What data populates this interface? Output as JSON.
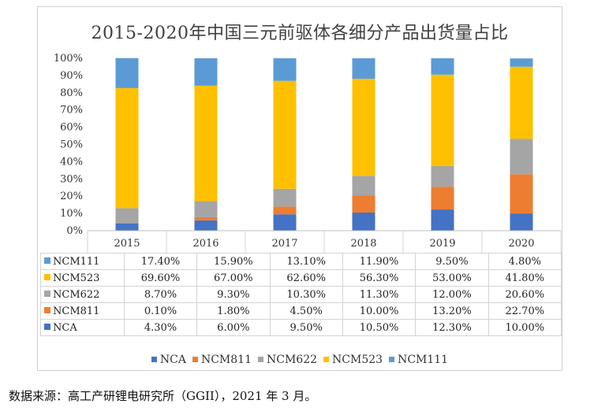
{
  "chart_data": {
    "type": "bar",
    "stacked": true,
    "title": "2015-2020年中国三元前驱体各细分产品出货量占比",
    "categories": [
      "2015",
      "2016",
      "2017",
      "2018",
      "2019",
      "2020"
    ],
    "y_tick_labels": [
      "0%",
      "10%",
      "20%",
      "30%",
      "40%",
      "50%",
      "60%",
      "70%",
      "80%",
      "90%",
      "100%"
    ],
    "ylim": [
      0,
      100
    ],
    "series": [
      {
        "name": "NCA",
        "color": "#4472C4",
        "values": [
          4.3,
          6.0,
          9.5,
          10.5,
          12.3,
          10.0
        ],
        "labels": [
          "4.30%",
          "6.00%",
          "9.50%",
          "10.50%",
          "12.30%",
          "10.00%"
        ]
      },
      {
        "name": "NCM811",
        "color": "#ED7D31",
        "values": [
          0.1,
          1.8,
          4.5,
          10.0,
          13.2,
          22.7
        ],
        "labels": [
          "0.10%",
          "1.80%",
          "4.50%",
          "10.00%",
          "13.20%",
          "22.70%"
        ]
      },
      {
        "name": "NCM622",
        "color": "#A5A5A5",
        "values": [
          8.7,
          9.3,
          10.3,
          11.3,
          12.0,
          20.6
        ],
        "labels": [
          "8.70%",
          "9.30%",
          "10.30%",
          "11.30%",
          "12.00%",
          "20.60%"
        ]
      },
      {
        "name": "NCM523",
        "color": "#FFC000",
        "values": [
          69.6,
          67.0,
          62.6,
          56.3,
          53.0,
          41.8
        ],
        "labels": [
          "69.60%",
          "67.00%",
          "62.60%",
          "56.30%",
          "53.00%",
          "41.80%"
        ]
      },
      {
        "name": "NCM111",
        "color": "#5B9BD5",
        "values": [
          17.4,
          15.9,
          13.1,
          11.9,
          9.5,
          4.8
        ],
        "labels": [
          "17.40%",
          "15.90%",
          "13.10%",
          "11.90%",
          "9.50%",
          "4.80%"
        ]
      }
    ],
    "table_row_order": [
      "NCM111",
      "NCM523",
      "NCM622",
      "NCM811",
      "NCA"
    ],
    "legend_order": [
      "NCA",
      "NCM811",
      "NCM622",
      "NCM523",
      "NCM111"
    ],
    "legend_position": "bottom"
  },
  "source_note": "数据来源：高工产研锂电研究所（GGII），2021 年 3 月。"
}
